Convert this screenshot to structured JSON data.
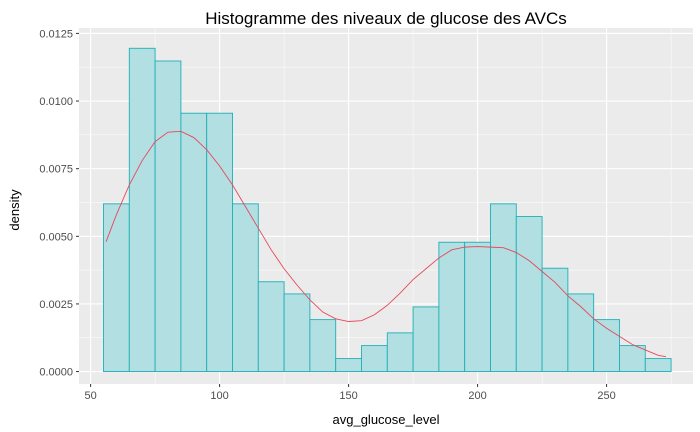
{
  "chart_data": {
    "type": "histogram",
    "title": "Histogramme des niveaux de glucose des AVCs",
    "xlabel": "avg_glucose_level",
    "ylabel": "density",
    "xlim": [
      45.5,
      283.5
    ],
    "ylim": [
      -0.00046,
      0.0127
    ],
    "x_ticks": [
      50,
      100,
      150,
      200,
      250
    ],
    "x_tick_labels": [
      "50",
      "100",
      "150",
      "200",
      "250"
    ],
    "y_ticks": [
      0,
      0.0025,
      0.005,
      0.0075,
      0.01,
      0.0125
    ],
    "y_tick_labels": [
      "0.0000",
      "0.0025",
      "0.0050",
      "0.0075",
      "0.0100",
      "0.0125"
    ],
    "grid": true,
    "bins": [
      {
        "x0": 55,
        "x1": 65,
        "density": 0.0062
      },
      {
        "x0": 65,
        "x1": 75,
        "density": 0.01195
      },
      {
        "x0": 75,
        "x1": 85,
        "density": 0.01148
      },
      {
        "x0": 85,
        "x1": 95,
        "density": 0.00955
      },
      {
        "x0": 95,
        "x1": 105,
        "density": 0.00955
      },
      {
        "x0": 105,
        "x1": 115,
        "density": 0.0062
      },
      {
        "x0": 115,
        "x1": 125,
        "density": 0.00332
      },
      {
        "x0": 125,
        "x1": 135,
        "density": 0.00287
      },
      {
        "x0": 135,
        "x1": 145,
        "density": 0.00192
      },
      {
        "x0": 145,
        "x1": 155,
        "density": 0.00048
      },
      {
        "x0": 155,
        "x1": 165,
        "density": 0.00096
      },
      {
        "x0": 165,
        "x1": 175,
        "density": 0.00143
      },
      {
        "x0": 175,
        "x1": 185,
        "density": 0.00239
      },
      {
        "x0": 185,
        "x1": 195,
        "density": 0.00478
      },
      {
        "x0": 195,
        "x1": 205,
        "density": 0.00478
      },
      {
        "x0": 205,
        "x1": 215,
        "density": 0.0062
      },
      {
        "x0": 215,
        "x1": 225,
        "density": 0.00573
      },
      {
        "x0": 225,
        "x1": 235,
        "density": 0.00382
      },
      {
        "x0": 235,
        "x1": 245,
        "density": 0.00287
      },
      {
        "x0": 245,
        "x1": 255,
        "density": 0.00192
      },
      {
        "x0": 255,
        "x1": 265,
        "density": 0.00096
      },
      {
        "x0": 265,
        "x1": 275,
        "density": 0.00048
      }
    ],
    "density_curve": {
      "x": [
        56,
        60,
        65,
        70,
        75,
        80,
        85,
        90,
        95,
        100,
        105,
        110,
        115,
        120,
        125,
        130,
        135,
        140,
        145,
        150,
        155,
        160,
        165,
        170,
        175,
        180,
        185,
        190,
        195,
        200,
        205,
        210,
        215,
        220,
        225,
        230,
        235,
        240,
        245,
        250,
        255,
        260,
        265,
        270,
        273
      ],
      "y": [
        0.0048,
        0.0058,
        0.0069,
        0.0078,
        0.0085,
        0.00885,
        0.00888,
        0.00865,
        0.0082,
        0.0076,
        0.0069,
        0.0061,
        0.0053,
        0.0045,
        0.0038,
        0.0032,
        0.00265,
        0.0022,
        0.00195,
        0.00185,
        0.00188,
        0.0021,
        0.00245,
        0.0029,
        0.0034,
        0.0038,
        0.0042,
        0.0045,
        0.0046,
        0.00462,
        0.0046,
        0.00458,
        0.0044,
        0.0041,
        0.0037,
        0.0033,
        0.0028,
        0.0024,
        0.00195,
        0.0016,
        0.0013,
        0.001,
        0.0008,
        0.0006,
        0.00055
      ]
    },
    "colors": {
      "bar_fill": "#b2dfe1",
      "bar_stroke": "#1fb0b8",
      "curve": "#e8475b",
      "panel": "#ebebeb",
      "grid": "#ffffff"
    }
  }
}
